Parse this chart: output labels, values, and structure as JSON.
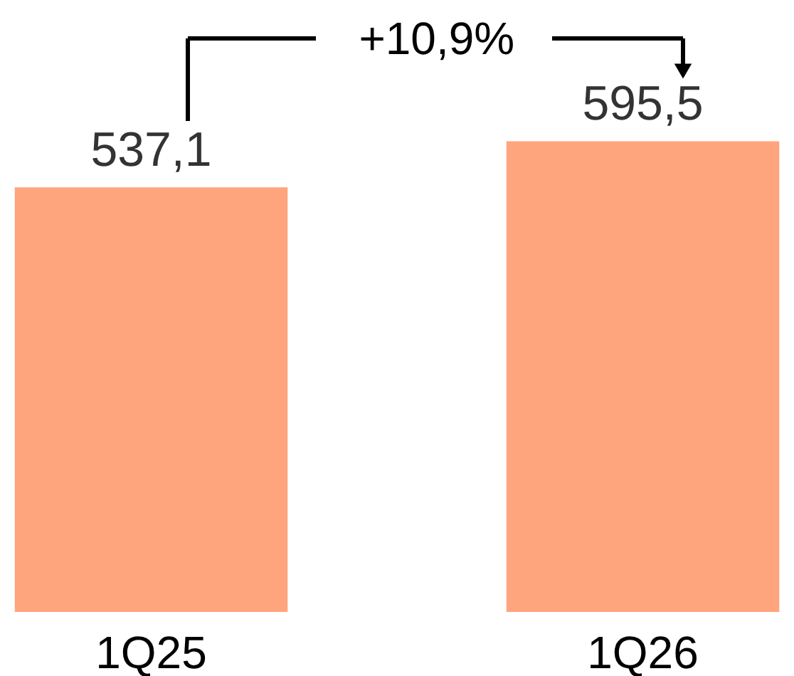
{
  "chart_data": {
    "type": "bar",
    "categories": [
      "1Q25",
      "1Q26"
    ],
    "values": [
      537.1,
      595.5
    ],
    "color": "#ffa57d",
    "value_labels": [
      "537,1",
      "595,5"
    ],
    "annotations": [
      "+10,9%"
    ]
  }
}
